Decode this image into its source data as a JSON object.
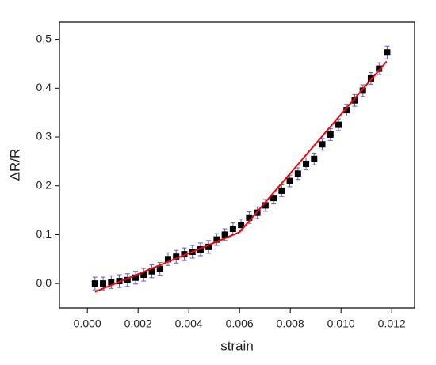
{
  "chart_data": {
    "type": "scatter",
    "xlabel": "strain",
    "ylabel": "ΔR/R",
    "xlim": [
      -0.0011,
      0.0129
    ],
    "ylim": [
      -0.05,
      0.535
    ],
    "xticks": [
      {
        "value": 0,
        "label": "0.000"
      },
      {
        "value": 0.002,
        "label": "0.002"
      },
      {
        "value": 0.004,
        "label": "0.004"
      },
      {
        "value": 0.006,
        "label": "0.006"
      },
      {
        "value": 0.008,
        "label": "0.008"
      },
      {
        "value": 0.01,
        "label": "0.010"
      },
      {
        "value": 0.012,
        "label": "0.012"
      }
    ],
    "yticks": [
      {
        "value": 0,
        "label": "0.0"
      },
      {
        "value": 0.1,
        "label": "0.1"
      },
      {
        "value": 0.2,
        "label": "0.2"
      },
      {
        "value": 0.3,
        "label": "0.3"
      },
      {
        "value": 0.4,
        "label": "0.4"
      },
      {
        "value": 0.5,
        "label": "0.5"
      }
    ],
    "series": [
      {
        "type": "scatter",
        "color": "#000000",
        "error_color": "#5a5ae0",
        "x": [
          0.0003,
          0.00062,
          0.00094,
          0.00126,
          0.00158,
          0.0019,
          0.00222,
          0.00254,
          0.00286,
          0.00318,
          0.0035,
          0.00382,
          0.00414,
          0.00446,
          0.00478,
          0.0051,
          0.00542,
          0.00574,
          0.00606,
          0.00638,
          0.0067,
          0.00702,
          0.00734,
          0.00766,
          0.00798,
          0.0083,
          0.00862,
          0.00894,
          0.00926,
          0.00958,
          0.0099,
          0.01022,
          0.01054,
          0.01086,
          0.01118,
          0.0115,
          0.01182
        ],
        "values": [
          0,
          0,
          0.003,
          0.005,
          0.007,
          0.012,
          0.018,
          0.025,
          0.03,
          0.05,
          0.055,
          0.06,
          0.065,
          0.07,
          0.075,
          0.09,
          0.1,
          0.112,
          0.12,
          0.135,
          0.145,
          0.16,
          0.175,
          0.19,
          0.21,
          0.225,
          0.245,
          0.255,
          0.285,
          0.305,
          0.325,
          0.355,
          0.375,
          0.395,
          0.42,
          0.44,
          0.473
        ],
        "errors": [
          0.013,
          0.013,
          0.013,
          0.013,
          0.013,
          0.013,
          0.013,
          0.013,
          0.013,
          0.013,
          0.013,
          0.013,
          0.013,
          0.013,
          0.013,
          0.012,
          0.012,
          0.012,
          0.012,
          0.012,
          0.012,
          0.012,
          0.012,
          0.012,
          0.012,
          0.012,
          0.012,
          0.012,
          0.012,
          0.012,
          0.012,
          0.012,
          0.012,
          0.012,
          0.012,
          0.012,
          0.013
        ]
      },
      {
        "type": "line",
        "color": "#ff0000",
        "x": [
          0.0003,
          0.006
        ],
        "values": [
          -0.017,
          0.105
        ]
      },
      {
        "type": "line",
        "color": "#ff0000",
        "x": [
          0.006,
          0.0118
        ],
        "values": [
          0.105,
          0.455
        ]
      }
    ]
  }
}
